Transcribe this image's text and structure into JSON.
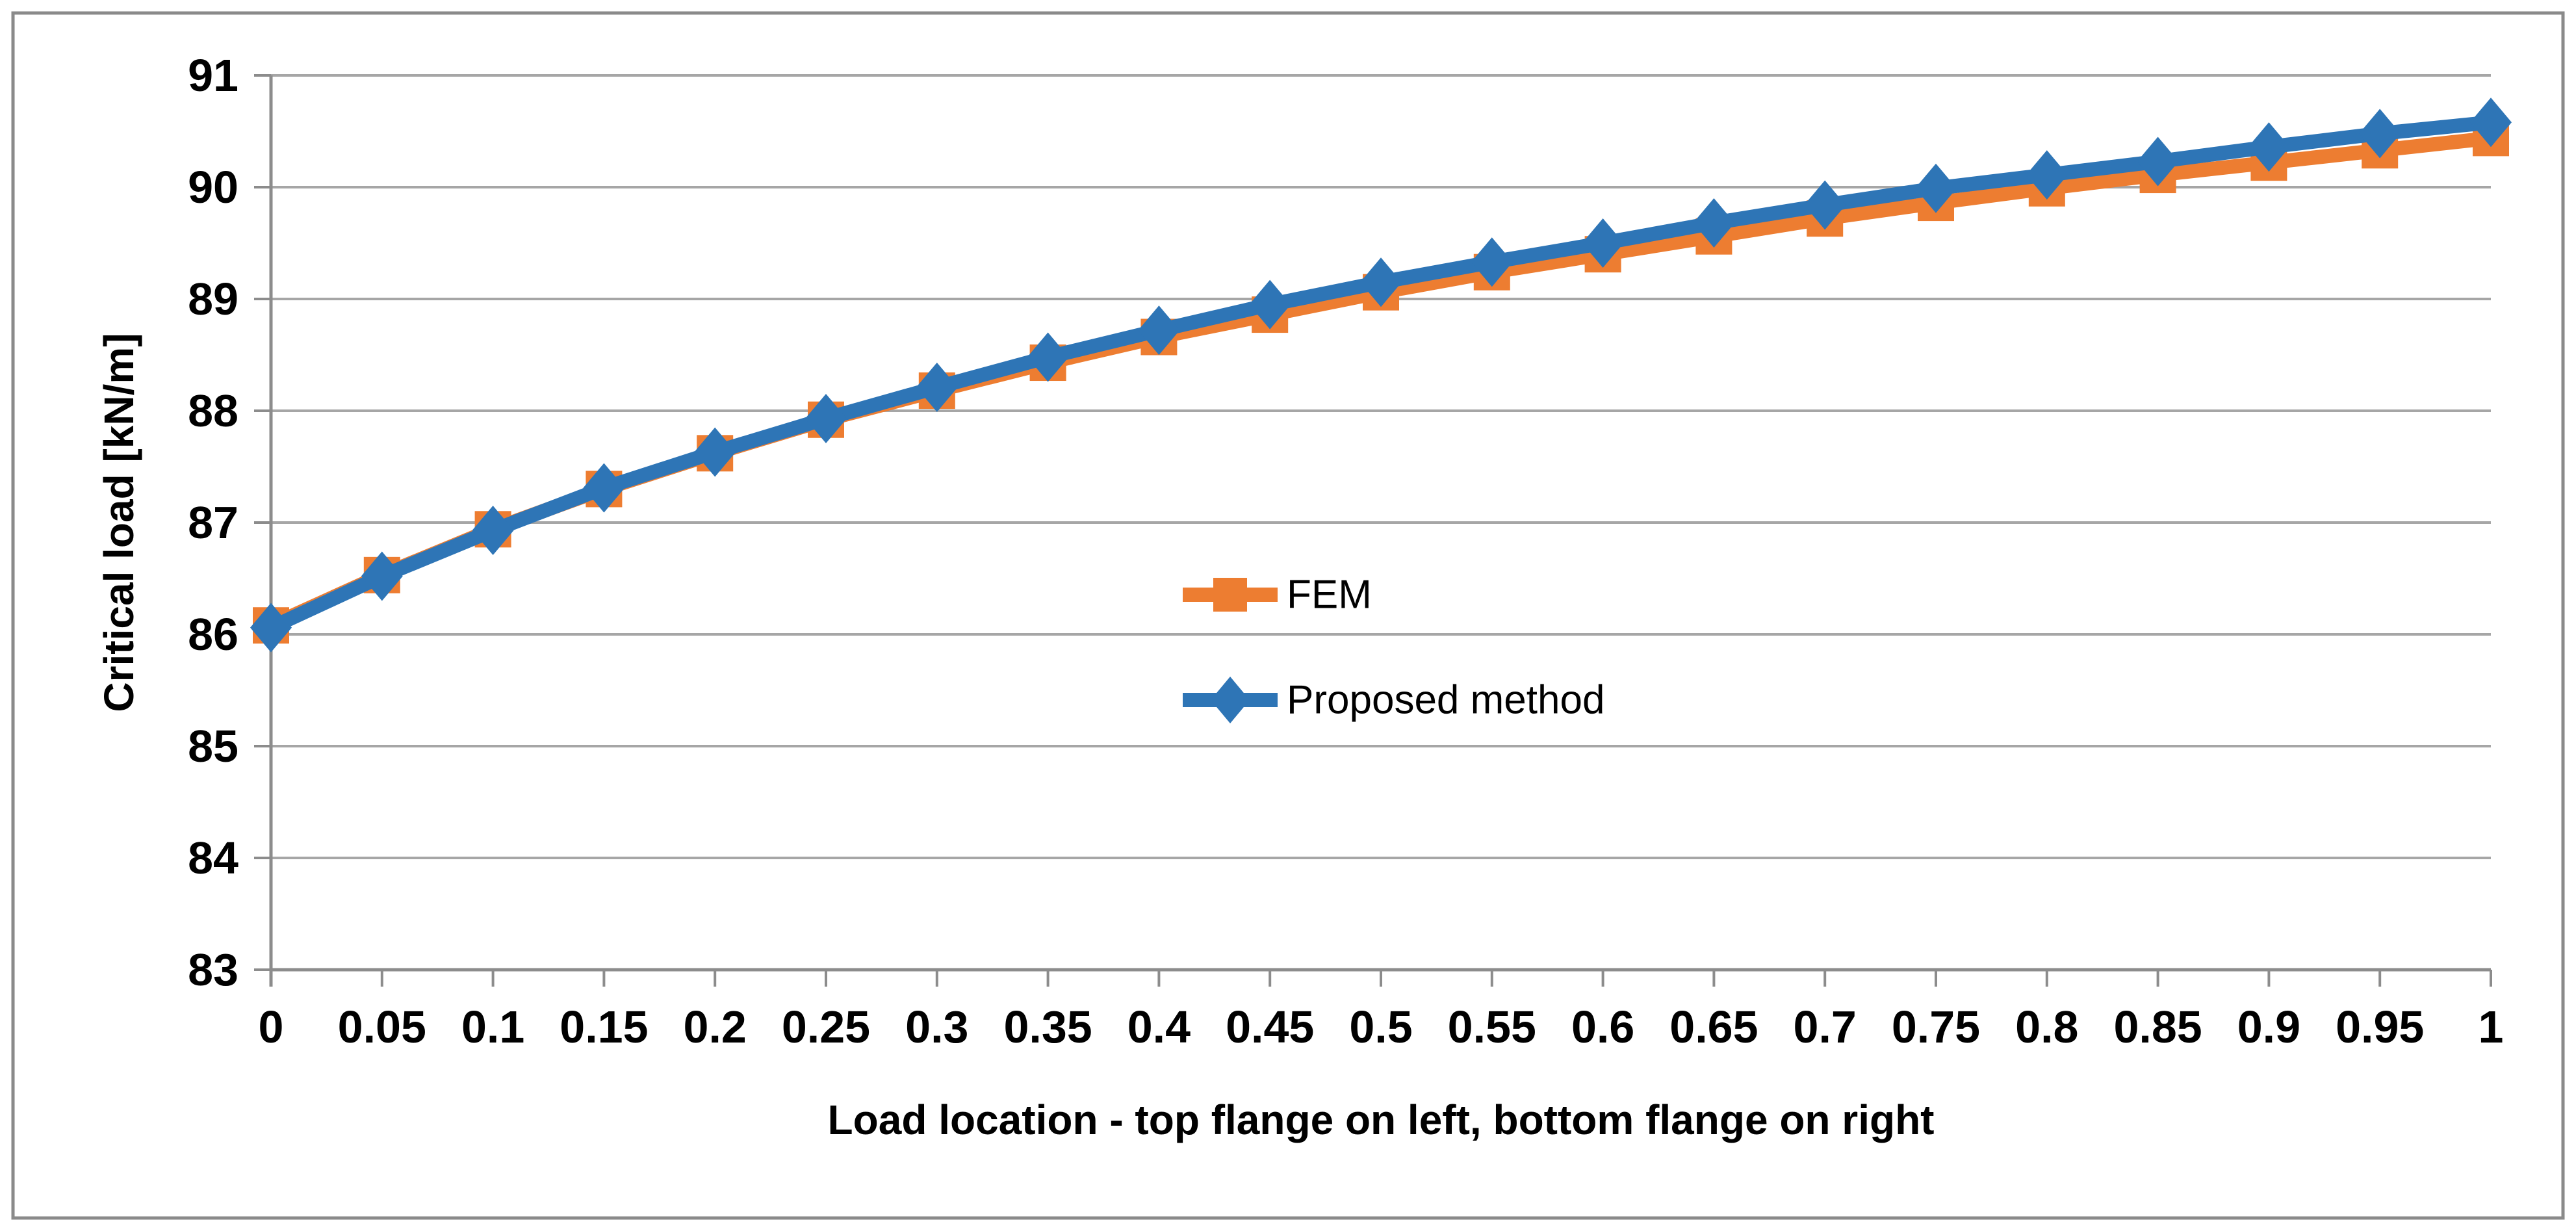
{
  "figure": {
    "background": "#FFFFFF",
    "border_color": "#8A8A8A",
    "gridline_color": "#A6A6A6",
    "axis_color": "#8C8C8C",
    "text_color": "#000000"
  },
  "chart_data": {
    "type": "line",
    "title": "",
    "xlabel": "Load location - top flange on left, bottom flange on right",
    "ylabel": "Critical load [kN/m]",
    "xlim": [
      0,
      1
    ],
    "ylim": [
      83,
      91
    ],
    "grid": "horizontal",
    "legend_position": "center",
    "x": [
      0,
      0.05,
      0.1,
      0.15,
      0.2,
      0.25,
      0.3,
      0.35,
      0.4,
      0.45,
      0.5,
      0.55,
      0.6,
      0.65,
      0.7,
      0.75,
      0.8,
      0.85,
      0.9,
      0.95,
      1
    ],
    "x_tick_labels": [
      "0",
      "0.05",
      "0.1",
      "0.15",
      "0.2",
      "0.25",
      "0.3",
      "0.35",
      "0.4",
      "0.45",
      "0.5",
      "0.55",
      "0.6",
      "0.65",
      "0.7",
      "0.75",
      "0.8",
      "0.85",
      "0.9",
      "0.95",
      "1"
    ],
    "y_tick_labels": [
      "83",
      "84",
      "85",
      "86",
      "87",
      "88",
      "89",
      "90",
      "91"
    ],
    "series": [
      {
        "name": "FEM",
        "color": "#ED7D31",
        "marker": "square",
        "values": [
          86.08,
          86.53,
          86.94,
          87.3,
          87.62,
          87.92,
          88.18,
          88.43,
          88.66,
          88.86,
          89.06,
          89.24,
          89.4,
          89.56,
          89.72,
          89.86,
          89.99,
          90.11,
          90.22,
          90.33,
          90.44
        ]
      },
      {
        "name": "Proposed method",
        "color": "#2E75B6",
        "marker": "diamond",
        "values": [
          86.06,
          86.52,
          86.93,
          87.31,
          87.63,
          87.93,
          88.21,
          88.48,
          88.72,
          88.95,
          89.15,
          89.33,
          89.5,
          89.68,
          89.84,
          89.99,
          90.11,
          90.23,
          90.36,
          90.48,
          90.58
        ]
      }
    ]
  }
}
